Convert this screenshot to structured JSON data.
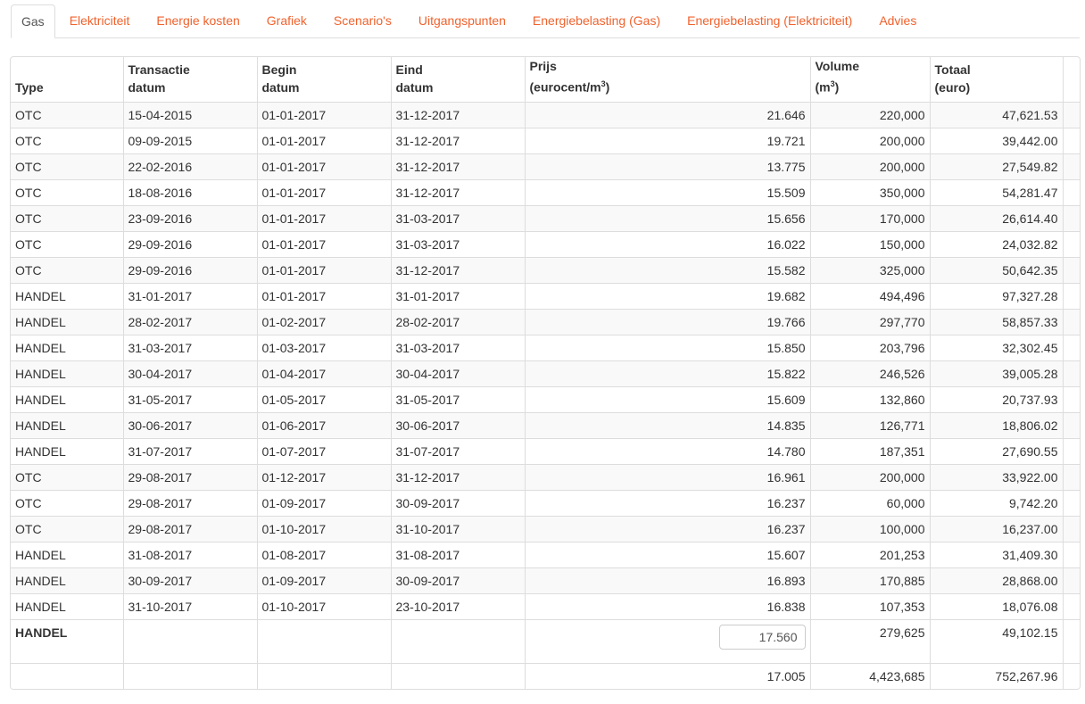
{
  "tabs": [
    "Gas",
    "Elektriciteit",
    "Energie kosten",
    "Grafiek",
    "Scenario's",
    "Uitgangspunten",
    "Energiebelasting (Gas)",
    "Energiebelasting (Elektriciteit)",
    "Advies"
  ],
  "active_tab": "Gas",
  "accent_color": "#f0622d",
  "headers": [
    {
      "l1": "",
      "l2": "Type"
    },
    {
      "l1": "Transactie",
      "l2": "datum"
    },
    {
      "l1": "Begin",
      "l2": "datum"
    },
    {
      "l1": "Eind",
      "l2": "datum"
    },
    {
      "l1": "Prijs",
      "l2": "(eurocent/m",
      "sup": "3",
      "end": ")"
    },
    {
      "l1": "Volume",
      "l2": "(m",
      "sup": "3",
      "end": ")"
    },
    {
      "l1": "Totaal",
      "l2": "(euro)"
    }
  ],
  "rows": [
    [
      "OTC",
      "15-04-2015",
      "01-01-2017",
      "31-12-2017",
      "21.646",
      "220,000",
      "47,621.53"
    ],
    [
      "OTC",
      "09-09-2015",
      "01-01-2017",
      "31-12-2017",
      "19.721",
      "200,000",
      "39,442.00"
    ],
    [
      "OTC",
      "22-02-2016",
      "01-01-2017",
      "31-12-2017",
      "13.775",
      "200,000",
      "27,549.82"
    ],
    [
      "OTC",
      "18-08-2016",
      "01-01-2017",
      "31-12-2017",
      "15.509",
      "350,000",
      "54,281.47"
    ],
    [
      "OTC",
      "23-09-2016",
      "01-01-2017",
      "31-03-2017",
      "15.656",
      "170,000",
      "26,614.40"
    ],
    [
      "OTC",
      "29-09-2016",
      "01-01-2017",
      "31-03-2017",
      "16.022",
      "150,000",
      "24,032.82"
    ],
    [
      "OTC",
      "29-09-2016",
      "01-01-2017",
      "31-12-2017",
      "15.582",
      "325,000",
      "50,642.35"
    ],
    [
      "HANDEL",
      "31-01-2017",
      "01-01-2017",
      "31-01-2017",
      "19.682",
      "494,496",
      "97,327.28"
    ],
    [
      "HANDEL",
      "28-02-2017",
      "01-02-2017",
      "28-02-2017",
      "19.766",
      "297,770",
      "58,857.33"
    ],
    [
      "HANDEL",
      "31-03-2017",
      "01-03-2017",
      "31-03-2017",
      "15.850",
      "203,796",
      "32,302.45"
    ],
    [
      "HANDEL",
      "30-04-2017",
      "01-04-2017",
      "30-04-2017",
      "15.822",
      "246,526",
      "39,005.28"
    ],
    [
      "HANDEL",
      "31-05-2017",
      "01-05-2017",
      "31-05-2017",
      "15.609",
      "132,860",
      "20,737.93"
    ],
    [
      "HANDEL",
      "30-06-2017",
      "01-06-2017",
      "30-06-2017",
      "14.835",
      "126,771",
      "18,806.02"
    ],
    [
      "HANDEL",
      "31-07-2017",
      "01-07-2017",
      "31-07-2017",
      "14.780",
      "187,351",
      "27,690.55"
    ],
    [
      "OTC",
      "29-08-2017",
      "01-12-2017",
      "31-12-2017",
      "16.961",
      "200,000",
      "33,922.00"
    ],
    [
      "OTC",
      "29-08-2017",
      "01-09-2017",
      "30-09-2017",
      "16.237",
      "60,000",
      "9,742.20"
    ],
    [
      "OTC",
      "29-08-2017",
      "01-10-2017",
      "31-10-2017",
      "16.237",
      "100,000",
      "16,237.00"
    ],
    [
      "HANDEL",
      "31-08-2017",
      "01-08-2017",
      "31-08-2017",
      "15.607",
      "201,253",
      "31,409.30"
    ],
    [
      "HANDEL",
      "30-09-2017",
      "01-09-2017",
      "30-09-2017",
      "16.893",
      "170,885",
      "28,868.00"
    ],
    [
      "HANDEL",
      "31-10-2017",
      "01-10-2017",
      "23-10-2017",
      "16.838",
      "107,353",
      "18,076.08"
    ]
  ],
  "handel_row": {
    "type": "HANDEL",
    "price_input": "17.560",
    "volume": "279,625",
    "total": "49,102.15"
  },
  "total_row": {
    "price": "17.005",
    "volume": "4,423,685",
    "total": "752,267.96"
  }
}
